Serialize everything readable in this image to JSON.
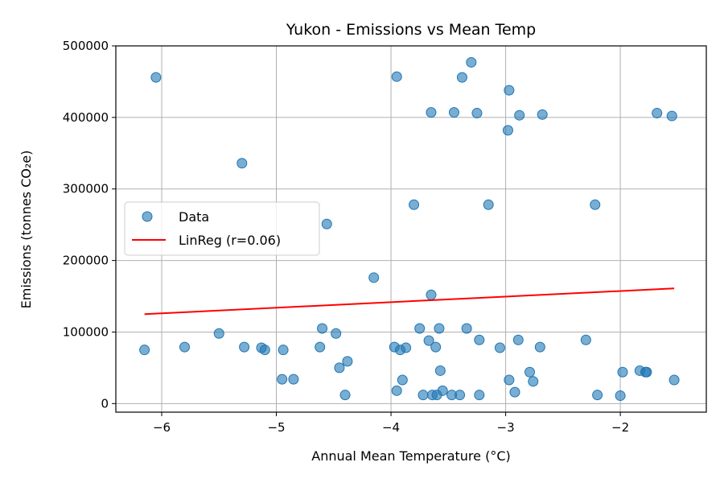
{
  "chart_data": {
    "type": "scatter",
    "title": "Yukon - Emissions vs Mean Temp",
    "xlabel": "Annual Mean Temperature (°C)",
    "ylabel": "Emissions (tonnes CO₂e)",
    "xlim": [
      -6.4,
      -1.25
    ],
    "ylim": [
      -12000,
      500000
    ],
    "xticks": [
      -6,
      -5,
      -4,
      -3,
      -2
    ],
    "xtick_labels": [
      "−6",
      "−5",
      "−4",
      "−3",
      "−2"
    ],
    "yticks": [
      0,
      100000,
      200000,
      300000,
      400000,
      500000
    ],
    "ytick_labels": [
      "0",
      "100000",
      "200000",
      "300000",
      "400000",
      "500000"
    ],
    "grid": true,
    "legend": {
      "position": "center-left",
      "entries": [
        "Data",
        "LinReg (r=0.06)"
      ]
    },
    "colors": {
      "scatter": "#1f77b4",
      "regression": "#ff0000"
    },
    "series": [
      {
        "name": "Data",
        "kind": "scatter",
        "points": [
          [
            -6.15,
            75000
          ],
          [
            -6.05,
            456000
          ],
          [
            -5.8,
            79000
          ],
          [
            -5.5,
            98000
          ],
          [
            -5.3,
            336000
          ],
          [
            -5.28,
            79000
          ],
          [
            -5.13,
            78000
          ],
          [
            -5.1,
            75000
          ],
          [
            -4.95,
            34000
          ],
          [
            -4.94,
            75000
          ],
          [
            -4.85,
            34000
          ],
          [
            -4.62,
            79000
          ],
          [
            -4.6,
            105000
          ],
          [
            -4.56,
            251000
          ],
          [
            -4.48,
            98000
          ],
          [
            -4.45,
            50000
          ],
          [
            -4.4,
            12000
          ],
          [
            -4.38,
            59000
          ],
          [
            -4.15,
            176000
          ],
          [
            -3.97,
            79000
          ],
          [
            -3.95,
            457000
          ],
          [
            -3.95,
            18000
          ],
          [
            -3.92,
            75000
          ],
          [
            -3.9,
            33000
          ],
          [
            -3.87,
            78000
          ],
          [
            -3.8,
            278000
          ],
          [
            -3.75,
            105000
          ],
          [
            -3.72,
            12000
          ],
          [
            -3.67,
            88000
          ],
          [
            -3.65,
            152000
          ],
          [
            -3.65,
            407000
          ],
          [
            -3.64,
            12000
          ],
          [
            -3.61,
            79000
          ],
          [
            -3.6,
            12000
          ],
          [
            -3.58,
            105000
          ],
          [
            -3.57,
            46000
          ],
          [
            -3.55,
            18000
          ],
          [
            -3.47,
            12000
          ],
          [
            -3.45,
            407000
          ],
          [
            -3.4,
            12000
          ],
          [
            -3.38,
            456000
          ],
          [
            -3.34,
            105000
          ],
          [
            -3.3,
            477000
          ],
          [
            -3.25,
            406000
          ],
          [
            -3.23,
            89000
          ],
          [
            -3.23,
            12000
          ],
          [
            -3.15,
            278000
          ],
          [
            -3.05,
            78000
          ],
          [
            -2.98,
            382000
          ],
          [
            -2.97,
            438000
          ],
          [
            -2.97,
            33000
          ],
          [
            -2.92,
            16000
          ],
          [
            -2.89,
            89000
          ],
          [
            -2.88,
            403000
          ],
          [
            -2.79,
            44000
          ],
          [
            -2.76,
            31000
          ],
          [
            -2.7,
            79000
          ],
          [
            -2.68,
            404000
          ],
          [
            -2.3,
            89000
          ],
          [
            -2.22,
            278000
          ],
          [
            -2.2,
            12000
          ],
          [
            -2.0,
            11000
          ],
          [
            -1.98,
            44000
          ],
          [
            -1.83,
            46000
          ],
          [
            -1.78,
            44000
          ],
          [
            -1.77,
            44000
          ],
          [
            -1.68,
            406000
          ],
          [
            -1.55,
            402000
          ],
          [
            -1.53,
            33000
          ]
        ]
      },
      {
        "name": "LinReg (r=0.06)",
        "kind": "line",
        "points": [
          [
            -6.15,
            125000
          ],
          [
            -1.53,
            161000
          ]
        ]
      }
    ]
  }
}
